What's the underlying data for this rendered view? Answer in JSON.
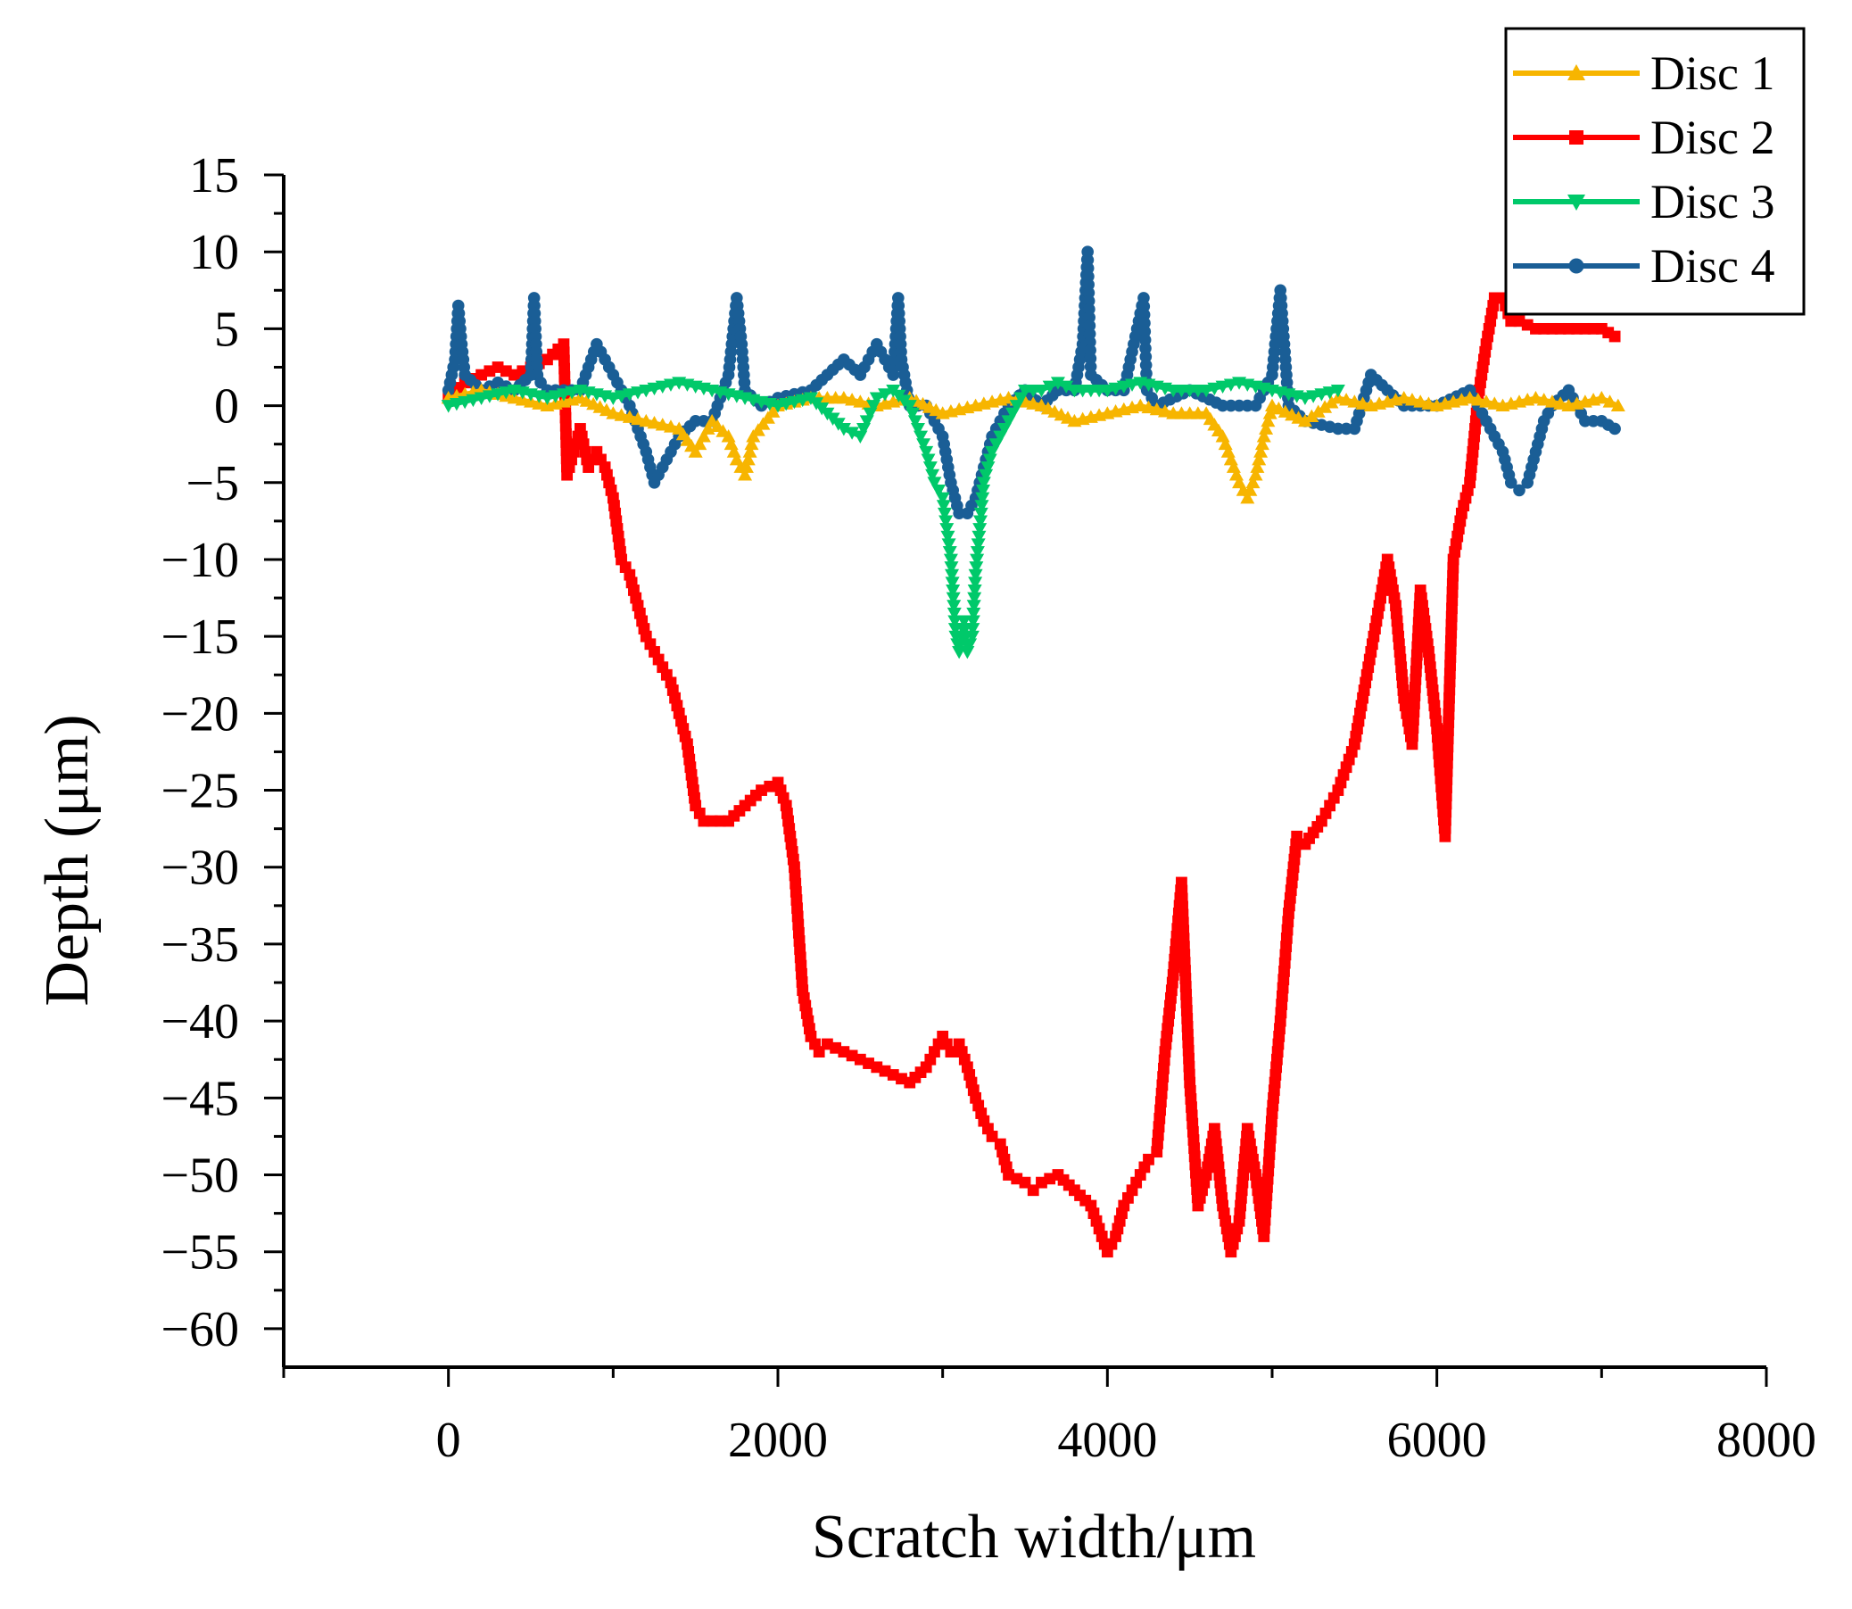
{
  "chart_data": {
    "type": "line",
    "title": "",
    "xlabel": "Scratch width/μm",
    "ylabel": "Depth (μm)",
    "xlim": [
      -1000,
      8000
    ],
    "ylim": [
      -62.5,
      15
    ],
    "x_ticks": [
      0,
      2000,
      4000,
      6000,
      8000
    ],
    "x_tick_labels": [
      "0",
      "2000",
      "4000",
      "6000",
      "8000"
    ],
    "y_ticks": [
      15,
      10,
      5,
      0,
      -5,
      -10,
      -15,
      -20,
      -25,
      -30,
      -35,
      -40,
      -45,
      -50,
      -55,
      -60
    ],
    "y_tick_labels": [
      "15",
      "10",
      "5",
      "0",
      "−5",
      "−10",
      "−15",
      "−20",
      "−25",
      "−30",
      "−35",
      "−40",
      "−45",
      "−50",
      "−55",
      "−60"
    ],
    "grid": false,
    "legend_position": "top-right",
    "series": [
      {
        "name": "Disc 1",
        "color": "#F7B500",
        "marker": "triangle-up",
        "x": [
          0,
          200,
          400,
          600,
          800,
          1000,
          1200,
          1400,
          1500,
          1600,
          1700,
          1750,
          1800,
          1850,
          2000,
          2200,
          2400,
          2600,
          2800,
          3000,
          3200,
          3400,
          3600,
          3800,
          4000,
          4200,
          4400,
          4600,
          4700,
          4750,
          4800,
          4850,
          4900,
          4950,
          5000,
          5200,
          5400,
          5600,
          5800,
          6000,
          6200,
          6400,
          6600,
          6800,
          7000,
          7100
        ],
        "y": [
          0.5,
          1,
          0.5,
          0,
          0.5,
          -0.5,
          -1,
          -1.5,
          -3,
          -1,
          -2,
          -3.5,
          -4.5,
          -2,
          0,
          0.5,
          0.5,
          0,
          0.5,
          -0.5,
          0,
          0.5,
          0,
          -1,
          -0.5,
          0,
          -0.5,
          -0.5,
          -2,
          -3.5,
          -5,
          -6,
          -4.5,
          -2,
          0,
          -1,
          0.5,
          0,
          0.5,
          0,
          0.5,
          0,
          0.5,
          0,
          0.5,
          0
        ]
      },
      {
        "name": "Disc 2",
        "color": "#FF0000",
        "marker": "square",
        "x": [
          0,
          100,
          200,
          300,
          400,
          500,
          600,
          700,
          720,
          760,
          800,
          850,
          900,
          950,
          1000,
          1050,
          1100,
          1150,
          1200,
          1250,
          1300,
          1350,
          1400,
          1450,
          1500,
          1550,
          1600,
          1650,
          1700,
          1800,
          1900,
          2000,
          2050,
          2100,
          2150,
          2200,
          2250,
          2300,
          2400,
          2500,
          2600,
          2700,
          2800,
          2900,
          2950,
          3000,
          3050,
          3100,
          3150,
          3200,
          3250,
          3300,
          3350,
          3400,
          3500,
          3550,
          3600,
          3700,
          3800,
          3900,
          4000,
          4050,
          4100,
          4150,
          4200,
          4250,
          4300,
          4350,
          4400,
          4450,
          4500,
          4550,
          4600,
          4650,
          4700,
          4750,
          4800,
          4850,
          4900,
          4950,
          5000,
          5050,
          5100,
          5150,
          5200,
          5300,
          5400,
          5500,
          5600,
          5650,
          5700,
          5750,
          5800,
          5850,
          5900,
          5950,
          6000,
          6050,
          6100,
          6150,
          6200,
          6250,
          6300,
          6350,
          6400,
          6450,
          6500,
          6600,
          6700,
          6800,
          6900,
          7000,
          7080
        ],
        "y": [
          0.5,
          1.5,
          2,
          2.5,
          2,
          2.5,
          3,
          4,
          -4.5,
          -3,
          -1.5,
          -4,
          -3,
          -4,
          -6,
          -10,
          -11,
          -13,
          -15,
          -16,
          -17,
          -18,
          -20,
          -22,
          -26,
          -27,
          -27,
          -27,
          -27,
          -26,
          -25,
          -24.5,
          -26,
          -30,
          -38,
          -41,
          -42,
          -41.5,
          -42,
          -42.5,
          -43,
          -43.5,
          -44,
          -43,
          -42,
          -41,
          -42,
          -41.5,
          -43,
          -45,
          -46.5,
          -47.5,
          -48,
          -50,
          -50.5,
          -51,
          -50.5,
          -50,
          -51,
          -52,
          -55,
          -54,
          -52,
          -51,
          -50,
          -49,
          -48.5,
          -42,
          -37,
          -31,
          -44,
          -52,
          -50,
          -47,
          -52,
          -55,
          -53,
          -47,
          -50,
          -54,
          -46,
          -40,
          -33,
          -28,
          -28.5,
          -27,
          -25,
          -22,
          -16,
          -13,
          -10,
          -13,
          -19,
          -22,
          -12,
          -16,
          -21,
          -28,
          -10,
          -7,
          -5,
          0.5,
          4,
          7,
          7,
          5.5,
          5.5,
          5,
          5,
          5,
          5,
          5,
          4.5
        ],
        "pixel_hint": "ignore"
      },
      {
        "name": "Disc 3",
        "color": "#00C96A",
        "marker": "triangle-down",
        "x": [
          0,
          200,
          400,
          600,
          800,
          1000,
          1200,
          1400,
          1600,
          1800,
          2000,
          2200,
          2400,
          2500,
          2600,
          2700,
          2800,
          2900,
          2950,
          3000,
          3050,
          3080,
          3100,
          3130,
          3150,
          3180,
          3200,
          3250,
          3300,
          3400,
          3500,
          3600,
          3700,
          3800,
          4000,
          4200,
          4400,
          4600,
          4800,
          5000,
          5200,
          5400
        ],
        "y": [
          0,
          0.5,
          1,
          0.5,
          1,
          0.5,
          1,
          1.5,
          1,
          0.5,
          0,
          0.5,
          -1.5,
          -2,
          0.5,
          1,
          0,
          -3,
          -5,
          -6,
          -10,
          -15,
          -16,
          -14,
          -16,
          -15,
          -11,
          -5,
          -3,
          -1,
          1,
          1,
          1.5,
          1,
          1,
          1.5,
          1,
          1,
          1.5,
          1,
          0.5,
          1
        ]
      },
      {
        "name": "Disc 4",
        "color": "#1A5E96",
        "marker": "circle",
        "x": [
          0,
          40,
          60,
          80,
          100,
          200,
          300,
          400,
          500,
          520,
          540,
          560,
          600,
          800,
          900,
          1000,
          1100,
          1200,
          1250,
          1300,
          1400,
          1500,
          1600,
          1700,
          1750,
          1780,
          1800,
          1900,
          2000,
          2200,
          2300,
          2400,
          2500,
          2600,
          2700,
          2730,
          2750,
          2800,
          2900,
          3000,
          3050,
          3100,
          3150,
          3200,
          3300,
          3400,
          3500,
          3600,
          3700,
          3800,
          3850,
          3880,
          3900,
          4000,
          4100,
          4200,
          4220,
          4240,
          4300,
          4500,
          4700,
          4900,
          5000,
          5050,
          5080,
          5100,
          5200,
          5400,
          5500,
          5600,
          5700,
          5800,
          6000,
          6200,
          6300,
          6400,
          6450,
          6500,
          6550,
          6600,
          6650,
          6700,
          6800,
          6900,
          7000,
          7080
        ],
        "y": [
          1,
          3,
          6.5,
          4,
          2,
          1,
          1.5,
          1,
          2,
          7,
          2,
          1.5,
          1,
          1,
          4,
          2,
          0,
          -3,
          -5,
          -4,
          -2,
          -1,
          -1,
          2,
          7,
          4,
          1,
          0,
          0.5,
          1,
          2,
          3,
          2,
          4,
          2,
          7,
          3,
          0,
          0,
          -2,
          -5,
          -7,
          -7,
          -6,
          -2,
          0,
          1,
          0,
          1,
          1,
          4,
          10,
          2,
          1,
          1,
          6,
          7,
          1,
          0,
          1,
          0,
          0,
          2,
          7.5,
          3,
          0,
          -1,
          -1.5,
          -1.5,
          2,
          1,
          0,
          0,
          1,
          -1,
          -3,
          -5,
          -5.5,
          -5,
          -3,
          -1,
          0,
          1,
          -1,
          -1,
          -1.5
        ]
      }
    ]
  }
}
